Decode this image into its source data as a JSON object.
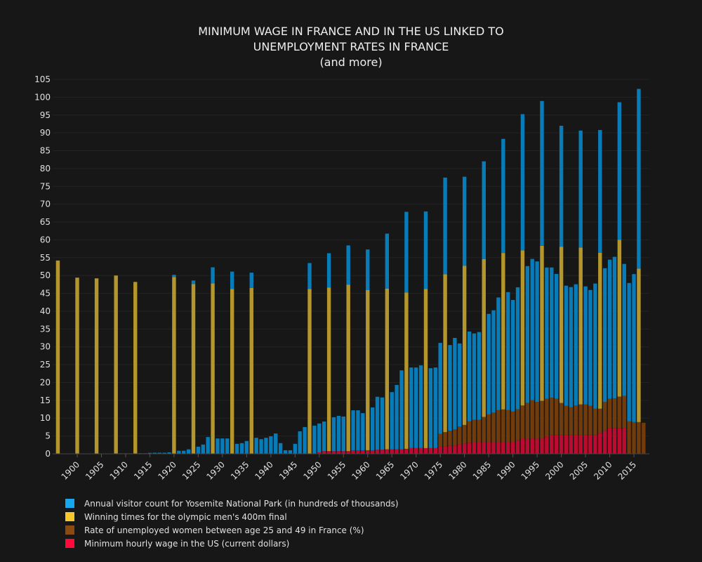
{
  "chart_data": {
    "type": "bar",
    "barmode": "stack",
    "title": [
      "MINIMUM WAGE IN FRANCE AND IN THE US LINKED TO",
      "UNEMPLOYMENT RATES IN FRANCE",
      "(and more)"
    ],
    "xlabel": "",
    "ylabel": "",
    "ylim": [
      0,
      105
    ],
    "yticks": [
      0,
      5,
      10,
      15,
      20,
      25,
      30,
      35,
      40,
      45,
      50,
      55,
      60,
      65,
      70,
      75,
      80,
      85,
      90,
      95,
      100,
      105
    ],
    "xticks": [
      1900,
      1905,
      1910,
      1915,
      1920,
      1925,
      1930,
      1935,
      1940,
      1945,
      1950,
      1955,
      1960,
      1965,
      1970,
      1975,
      1980,
      1985,
      1990,
      1995,
      2000,
      2005,
      2010,
      2015
    ],
    "grid": true,
    "legend_position": "bottom-left",
    "x_start": 1896,
    "x_end": 2017,
    "series": [
      {
        "name": "Minimum hourly wage in the US (current dollars)",
        "color": "#bd0a2f",
        "legend_color": "#ff0a3a",
        "values": {
          "1950": 0.4,
          "1951": 0.75,
          "1952": 0.75,
          "1953": 0.75,
          "1954": 0.75,
          "1955": 0.75,
          "1956": 0.75,
          "1957": 1.0,
          "1958": 1.0,
          "1959": 1.0,
          "1960": 1.0,
          "1961": 1.0,
          "1962": 1.15,
          "1963": 1.15,
          "1964": 1.25,
          "1965": 1.25,
          "1966": 1.25,
          "1967": 1.25,
          "1968": 1.4,
          "1969": 1.6,
          "1970": 1.6,
          "1971": 1.6,
          "1972": 1.6,
          "1973": 1.6,
          "1974": 1.6,
          "1975": 2.0,
          "1976": 2.1,
          "1977": 2.3,
          "1978": 2.3,
          "1979": 2.65,
          "1980": 2.9,
          "1981": 3.1,
          "1982": 3.35,
          "1983": 3.35,
          "1984": 3.35,
          "1985": 3.35,
          "1986": 3.35,
          "1987": 3.35,
          "1988": 3.35,
          "1989": 3.35,
          "1990": 3.35,
          "1991": 3.8,
          "1992": 4.25,
          "1993": 4.25,
          "1994": 4.25,
          "1995": 4.25,
          "1996": 4.25,
          "1997": 4.75,
          "1998": 5.15,
          "1999": 5.15,
          "2000": 5.15,
          "2001": 5.15,
          "2002": 5.15,
          "2003": 5.15,
          "2004": 5.15,
          "2005": 5.15,
          "2006": 5.15,
          "2007": 5.15,
          "2008": 5.85,
          "2009": 6.55,
          "2010": 7.25,
          "2011": 7.25,
          "2012": 7.25,
          "2013": 7.25
        }
      },
      {
        "name": "Rate of unemployed women between age 25 and 49 in France (%)",
        "color": "#713b0b",
        "legend_color": "#8b4a0f",
        "values": {
          "1975": 3.6,
          "1976": 4.0,
          "1977": 4.2,
          "1978": 4.6,
          "1979": 5.0,
          "1980": 5.2,
          "1981": 6.0,
          "1982": 6.2,
          "1983": 6.2,
          "1984": 7.0,
          "1985": 7.7,
          "1986": 8.2,
          "1987": 8.9,
          "1988": 9.1,
          "1989": 8.9,
          "1990": 8.5,
          "1991": 8.7,
          "1992": 9.3,
          "1993": 10.0,
          "1994": 10.8,
          "1995": 10.3,
          "1996": 10.6,
          "1997": 10.7,
          "1998": 10.6,
          "1999": 10.3,
          "2000": 9.1,
          "2001": 8.3,
          "2002": 7.9,
          "2003": 8.4,
          "2004": 8.7,
          "2005": 8.7,
          "2006": 8.3,
          "2007": 7.5,
          "2008": 6.8,
          "2009": 8.0,
          "2010": 8.2,
          "2011": 8.3,
          "2012": 8.8,
          "2013": 9.0,
          "2014": 9.1,
          "2015": 8.9,
          "2016": 8.9,
          "2017": 8.7
        }
      },
      {
        "name": "Winning times for the olympic men's 400m final",
        "color": "#b5962c",
        "legend_color": "#f5c72a",
        "values": {
          "1896": 54.2,
          "1900": 49.4,
          "1904": 49.2,
          "1908": 50.0,
          "1912": 48.2,
          "1920": 49.6,
          "1924": 47.6,
          "1928": 47.8,
          "1932": 46.2,
          "1936": 46.5,
          "1948": 46.2,
          "1952": 45.9,
          "1956": 46.7,
          "1960": 44.9,
          "1964": 45.1,
          "1968": 43.86,
          "1972": 44.66,
          "1976": 44.26,
          "1980": 44.6,
          "1984": 44.27,
          "1988": 43.87,
          "1992": 43.5,
          "1996": 43.49,
          "2000": 43.84,
          "2004": 44.0,
          "2008": 43.75,
          "2012": 43.94,
          "2016": 43.03
        }
      },
      {
        "name": "Annual visitor count for Yosemite National Park (in hundreds of thousands)",
        "color": "#077cb9",
        "legend_color": "#17a7ef",
        "values": {
          "1909": 0.13,
          "1910": 0.13,
          "1911": 0.13,
          "1913": 0.15,
          "1914": 0.15,
          "1915": 0.26,
          "1916": 0.3,
          "1917": 0.3,
          "1918": 0.3,
          "1919": 0.4,
          "1920": 0.6,
          "1921": 0.85,
          "1922": 0.85,
          "1923": 1.25,
          "1924": 1.0,
          "1925": 2.0,
          "1926": 2.6,
          "1927": 4.7,
          "1928": 4.5,
          "1929": 4.3,
          "1930": 4.3,
          "1931": 4.3,
          "1932": 4.9,
          "1933": 2.8,
          "1934": 3.0,
          "1935": 3.6,
          "1936": 4.3,
          "1937": 4.5,
          "1938": 4.1,
          "1939": 4.5,
          "1940": 4.9,
          "1941": 5.7,
          "1942": 3.0,
          "1943": 1.0,
          "1944": 1.0,
          "1945": 2.8,
          "1946": 6.3,
          "1947": 7.5,
          "1948": 7.3,
          "1949": 7.9,
          "1950": 8.1,
          "1951": 8.3,
          "1952": 9.6,
          "1953": 9.5,
          "1954": 9.9,
          "1955": 9.7,
          "1956": 11.0,
          "1957": 11.2,
          "1958": 11.2,
          "1959": 10.4,
          "1960": 11.4,
          "1961": 12.0,
          "1962": 14.85,
          "1963": 14.65,
          "1964": 15.4,
          "1965": 16.05,
          "1966": 18.05,
          "1967": 22.15,
          "1968": 22.6,
          "1969": 22.6,
          "1970": 22.6,
          "1971": 23.2,
          "1972": 21.7,
          "1973": 22.4,
          "1974": 22.6,
          "1975": 25.5,
          "1976": 27.1,
          "1977": 24.0,
          "1978": 25.6,
          "1979": 23.3,
          "1980": 25.0,
          "1981": 25.2,
          "1982": 24.2,
          "1983": 24.6,
          "1984": 27.4,
          "1985": 28.2,
          "1986": 28.7,
          "1987": 31.6,
          "1988": 32.0,
          "1989": 33.1,
          "1990": 31.3,
          "1991": 34.2,
          "1992": 38.2,
          "1993": 38.4,
          "1994": 39.6,
          "1995": 39.4,
          "1996": 40.6,
          "1997": 36.8,
          "1998": 36.5,
          "1999": 35.0,
          "2000": 33.9,
          "2001": 33.7,
          "2002": 33.7,
          "2003": 34.0,
          "2004": 32.8,
          "2005": 33.1,
          "2006": 32.5,
          "2007": 35.1,
          "2008": 34.4,
          "2009": 37.5,
          "2010": 39.0,
          "2011": 39.7,
          "2012": 38.6,
          "2013": 37.0,
          "2014": 38.8,
          "2015": 41.5,
          "2016": 50.4
        }
      }
    ],
    "legend_order": [
      3,
      2,
      1,
      0
    ]
  }
}
